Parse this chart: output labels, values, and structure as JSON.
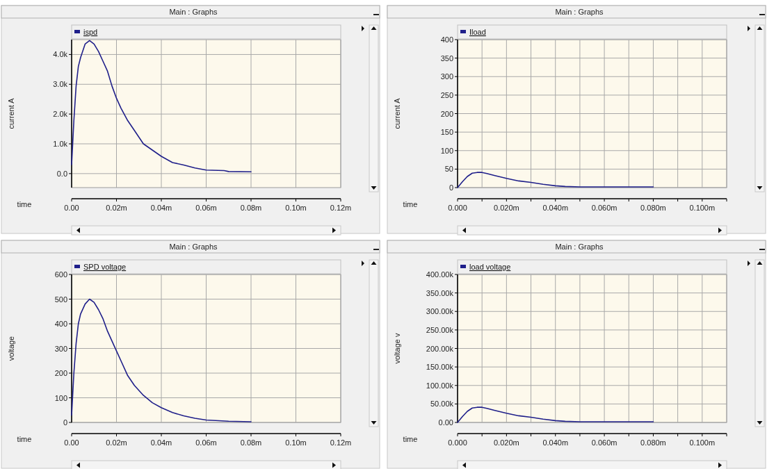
{
  "chart_data": [
    {
      "type": "line",
      "title": "Main : Graphs",
      "xlabel": "time",
      "ylabel": "current A",
      "legend": "top",
      "grid": true,
      "x": [
        0,
        0.001,
        0.002,
        0.003,
        0.004,
        0.006,
        0.008,
        0.01,
        0.012,
        0.014,
        0.016,
        0.018,
        0.02,
        0.022,
        0.025,
        0.028,
        0.032,
        0.036,
        0.04,
        0.045,
        0.05,
        0.055,
        0.06,
        0.068,
        0.07,
        0.08
      ],
      "series": [
        {
          "name": "ispd",
          "color": "#1f1f8a",
          "values": [
            300,
            1780,
            2940,
            3600,
            3900,
            4350,
            4470,
            4350,
            4100,
            3770,
            3440,
            2940,
            2530,
            2200,
            1780,
            1450,
            1000,
            790,
            580,
            370,
            290,
            190,
            120,
            100,
            70,
            60
          ]
        }
      ],
      "xlim": [
        0,
        0.12
      ],
      "ylim": [
        -470,
        4500
      ],
      "xticks": [
        {
          "value": 0,
          "label": "0.00"
        },
        {
          "value": 0.02,
          "label": "0.02m"
        },
        {
          "value": 0.04,
          "label": "0.04m"
        },
        {
          "value": 0.06,
          "label": "0.06m"
        },
        {
          "value": 0.08,
          "label": "0.08m"
        },
        {
          "value": 0.1,
          "label": "0.10m"
        },
        {
          "value": 0.12,
          "label": "0.12m"
        }
      ],
      "yticks": [
        {
          "value": 0,
          "label": "0.0"
        },
        {
          "value": 1000,
          "label": "1.0k"
        },
        {
          "value": 2000,
          "label": "2.0k"
        },
        {
          "value": 3000,
          "label": "3.0k"
        },
        {
          "value": 4000,
          "label": "4.0k"
        }
      ]
    },
    {
      "type": "line",
      "title": "Main : Graphs",
      "xlabel": "time",
      "ylabel": "current A",
      "legend": "top",
      "grid": true,
      "x": [
        0,
        0.002,
        0.004,
        0.006,
        0.008,
        0.01,
        0.012,
        0.015,
        0.02,
        0.025,
        0.03,
        0.035,
        0.04,
        0.044,
        0.05,
        0.08
      ],
      "series": [
        {
          "name": "Iload",
          "color": "#1f1f8a",
          "values": [
            0,
            16,
            30,
            39,
            41,
            41,
            38,
            33,
            25,
            18,
            14,
            9,
            5,
            3,
            2,
            2
          ]
        }
      ],
      "xlim": [
        0,
        0.11
      ],
      "ylim": [
        0,
        400
      ],
      "xticks": [
        {
          "value": 0,
          "label": "0.000"
        },
        {
          "value": 0.01,
          "label": null
        },
        {
          "value": 0.02,
          "label": "0.020m"
        },
        {
          "value": 0.03,
          "label": null
        },
        {
          "value": 0.04,
          "label": "0.040m"
        },
        {
          "value": 0.05,
          "label": null
        },
        {
          "value": 0.06,
          "label": "0.060m"
        },
        {
          "value": 0.07,
          "label": null
        },
        {
          "value": 0.08,
          "label": "0.080m"
        },
        {
          "value": 0.09,
          "label": null
        },
        {
          "value": 0.1,
          "label": "0.100m"
        },
        {
          "value": 0.11,
          "label": null
        }
      ],
      "yticks": [
        0,
        50,
        100,
        150,
        200,
        250,
        300,
        350,
        400
      ]
    },
    {
      "type": "line",
      "title": "Main : Graphs",
      "xlabel": "time",
      "ylabel": "voltage",
      "legend": "top",
      "grid": true,
      "x": [
        0,
        0.001,
        0.002,
        0.003,
        0.004,
        0.006,
        0.008,
        0.01,
        0.012,
        0.014,
        0.016,
        0.018,
        0.02,
        0.022,
        0.025,
        0.028,
        0.032,
        0.036,
        0.04,
        0.045,
        0.05,
        0.055,
        0.06,
        0.07,
        0.08
      ],
      "series": [
        {
          "name": "SPD voltage",
          "color": "#1f1f8a",
          "values": [
            30,
            200,
            320,
            400,
            440,
            480,
            500,
            487,
            457,
            420,
            370,
            330,
            290,
            250,
            190,
            150,
            110,
            80,
            60,
            40,
            27,
            17,
            10,
            5,
            3
          ]
        }
      ],
      "xlim": [
        0,
        0.12
      ],
      "ylim": [
        0,
        600
      ],
      "xticks": [
        {
          "value": 0,
          "label": "0.00"
        },
        {
          "value": 0.02,
          "label": "0.02m"
        },
        {
          "value": 0.04,
          "label": "0.04m"
        },
        {
          "value": 0.06,
          "label": "0.06m"
        },
        {
          "value": 0.08,
          "label": "0.08m"
        },
        {
          "value": 0.1,
          "label": "0.10m"
        },
        {
          "value": 0.12,
          "label": "0.12m"
        }
      ],
      "yticks": [
        0,
        100,
        200,
        300,
        400,
        500,
        600
      ]
    },
    {
      "type": "line",
      "title": "Main : Graphs",
      "xlabel": "time",
      "ylabel": "voltage v",
      "legend": "top",
      "grid": true,
      "x": [
        0,
        0.002,
        0.004,
        0.006,
        0.008,
        0.01,
        0.012,
        0.015,
        0.02,
        0.025,
        0.03,
        0.035,
        0.04,
        0.044,
        0.05,
        0.08
      ],
      "series": [
        {
          "name": "load voltage",
          "color": "#1f1f8a",
          "values": [
            0,
            16000,
            30000,
            39000,
            41000,
            41000,
            38000,
            33000,
            25000,
            18000,
            14000,
            9000,
            5000,
            3000,
            2000,
            2000
          ]
        }
      ],
      "xlim": [
        0,
        0.11
      ],
      "ylim": [
        0,
        400000
      ],
      "xticks": [
        {
          "value": 0,
          "label": "0.000"
        },
        {
          "value": 0.01,
          "label": null
        },
        {
          "value": 0.02,
          "label": "0.020m"
        },
        {
          "value": 0.03,
          "label": null
        },
        {
          "value": 0.04,
          "label": "0.040m"
        },
        {
          "value": 0.05,
          "label": null
        },
        {
          "value": 0.06,
          "label": "0.060m"
        },
        {
          "value": 0.07,
          "label": null
        },
        {
          "value": 0.08,
          "label": "0.080m"
        },
        {
          "value": 0.09,
          "label": null
        },
        {
          "value": 0.1,
          "label": "0.100m"
        },
        {
          "value": 0.11,
          "label": null
        }
      ],
      "yticks": [
        {
          "value": 0,
          "label": "0.00"
        },
        {
          "value": 50000,
          "label": "50.00k"
        },
        {
          "value": 100000,
          "label": "100.00k"
        },
        {
          "value": 150000,
          "label": "150.00k"
        },
        {
          "value": 200000,
          "label": "200.00k"
        },
        {
          "value": 250000,
          "label": "250.00k"
        },
        {
          "value": 300000,
          "label": "300.00k"
        },
        {
          "value": 350000,
          "label": "350.00k"
        },
        {
          "value": 400000,
          "label": "400.00k"
        }
      ]
    }
  ]
}
